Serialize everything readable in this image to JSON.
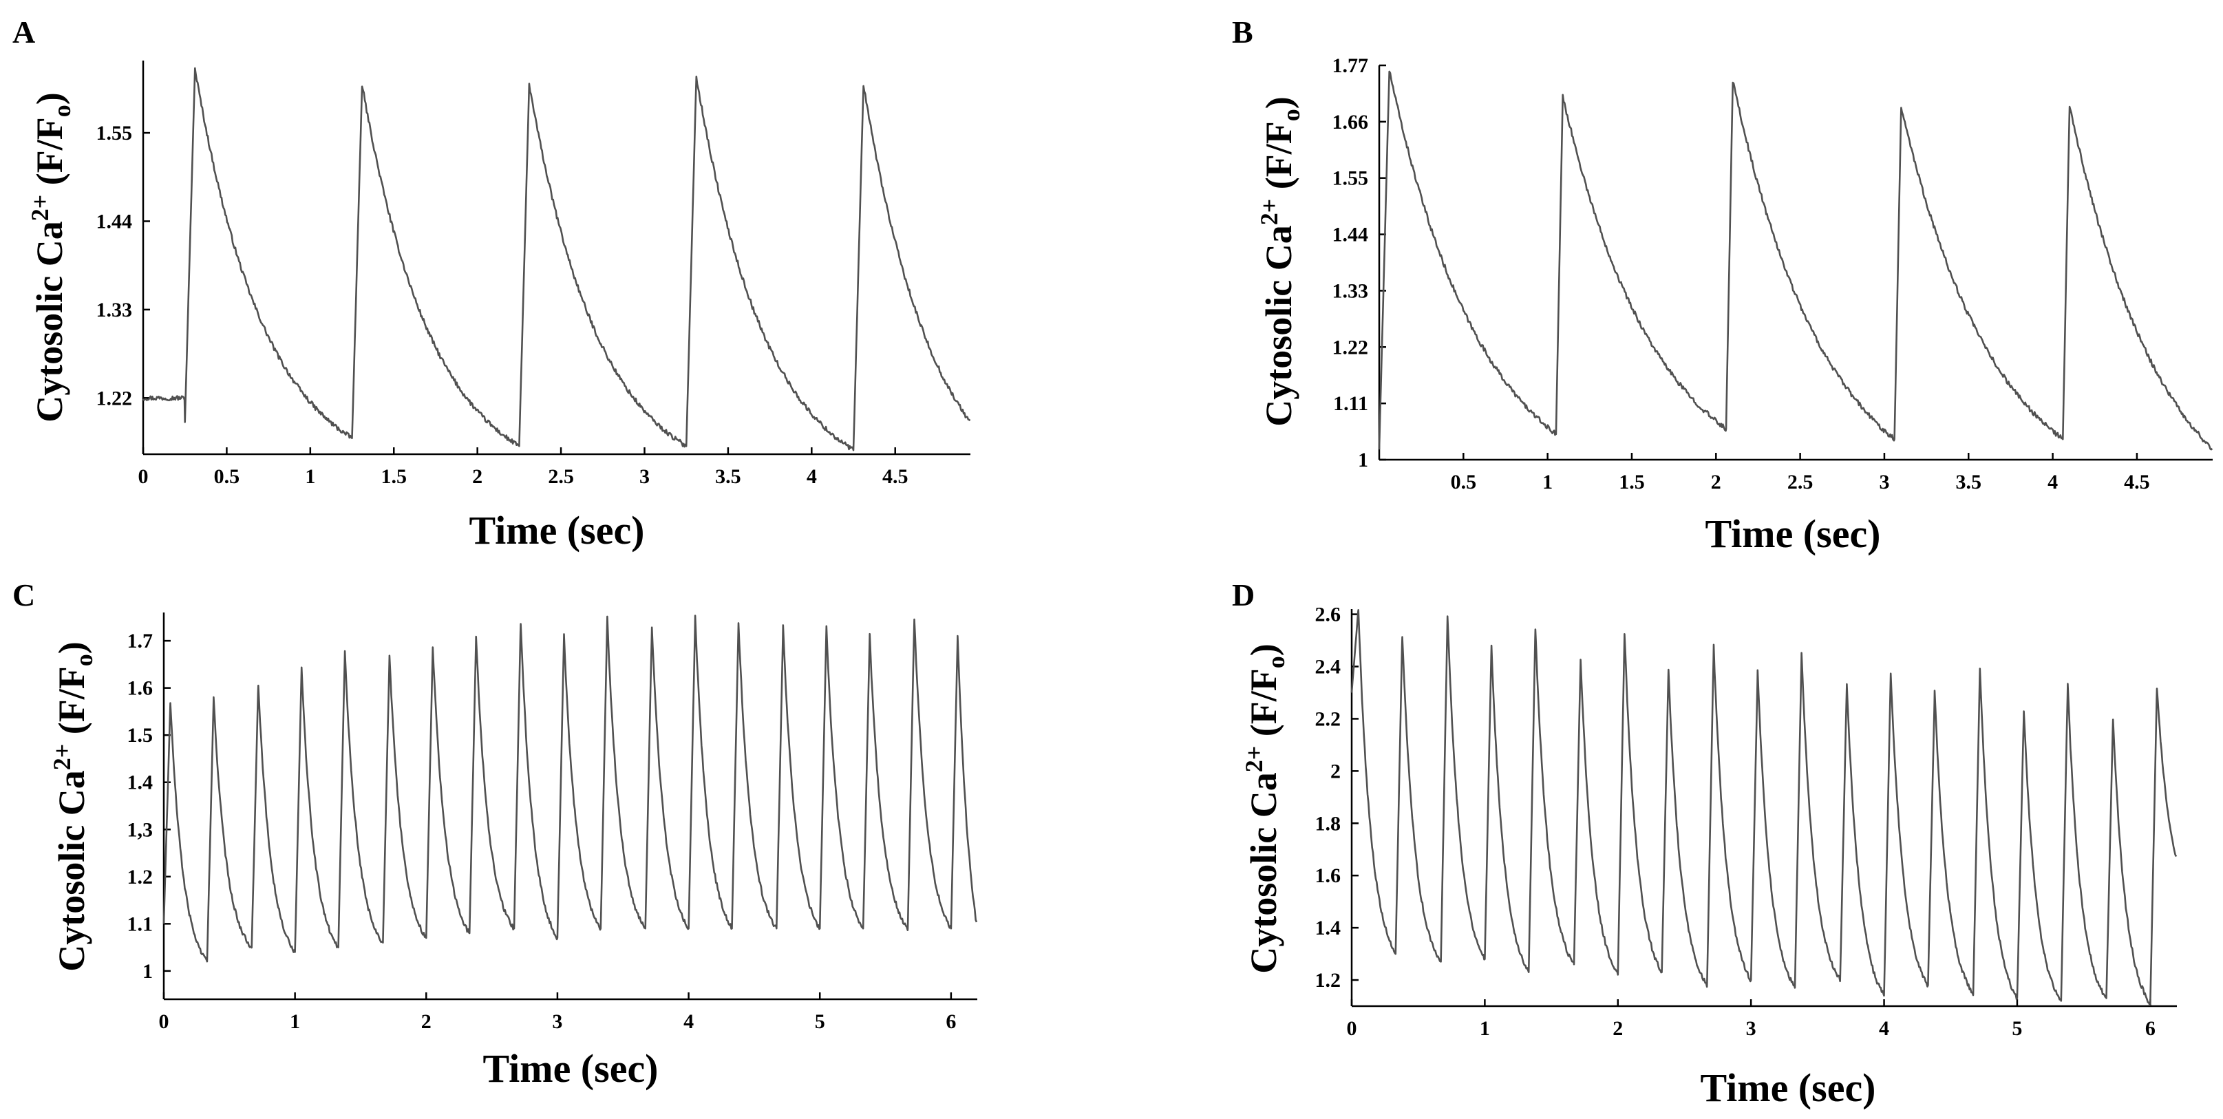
{
  "chart_data": [
    {
      "panel": "A",
      "type": "line",
      "xlabel": "Time (sec)",
      "ylabel_main": "Cytosolic Ca",
      "ylabel_sup": "2+",
      "ylabel_pre": "(F/F",
      "ylabel_sub": "o",
      "ylabel_post": ")",
      "xlim": [
        0,
        4.95
      ],
      "ylim": [
        1.15,
        1.64
      ],
      "xticks": [
        0,
        0.5,
        1,
        1.5,
        2,
        2.5,
        3,
        3.5,
        4,
        4.5
      ],
      "xtick_labels": [
        "0",
        "0.5",
        "1",
        "1.5",
        "2",
        "2.5",
        "3",
        "3.5",
        "4",
        "4.5"
      ],
      "yticks": [
        1.22,
        1.33,
        1.44,
        1.55
      ],
      "ytick_labels": [
        "1.22",
        "1.33",
        "1.44",
        "1.55"
      ],
      "series": [
        {
          "name": "Cytosolic Ca2+",
          "peaks": [
            {
              "t0": 0.25,
              "rise": 0.06,
              "base": 1.19,
              "peak": 1.63,
              "end": 1.17
            },
            {
              "t0": 1.25,
              "rise": 0.06,
              "base": 1.17,
              "peak": 1.61,
              "end": 1.16
            },
            {
              "t0": 2.25,
              "rise": 0.06,
              "base": 1.16,
              "peak": 1.61,
              "end": 1.16
            },
            {
              "t0": 3.25,
              "rise": 0.06,
              "base": 1.16,
              "peak": 1.62,
              "end": 1.155
            },
            {
              "t0": 4.25,
              "rise": 0.06,
              "base": 1.155,
              "peak": 1.61,
              "end": 1.19
            }
          ],
          "pre_value": 1.22,
          "tau": 0.42
        }
      ]
    },
    {
      "panel": "B",
      "type": "line",
      "xlabel": "Time (sec)",
      "ylabel_main": "Cytosolic Ca",
      "ylabel_sup": "2+",
      "ylabel_pre": "(F/F",
      "ylabel_sub": "o",
      "ylabel_post": ")",
      "xlim": [
        0,
        4.95
      ],
      "ylim": [
        1.0,
        1.77
      ],
      "xticks": [
        0.5,
        1,
        1.5,
        2,
        2.5,
        3,
        3.5,
        4,
        4.5
      ],
      "xtick_labels": [
        "0.5",
        "1",
        "1.5",
        "2",
        "2.5",
        "3",
        "3.5",
        "4",
        "4.5"
      ],
      "yticks": [
        1,
        1.11,
        1.22,
        1.33,
        1.44,
        1.55,
        1.66,
        1.77
      ],
      "ytick_labels": [
        "1",
        "1.11",
        "1.22",
        "1.33",
        "1.44",
        "1.55",
        "1.66",
        "1.77"
      ],
      "series": [
        {
          "name": "Cytosolic Ca2+",
          "peaks": [
            {
              "t0": 0.0,
              "rise": 0.06,
              "base": 1.02,
              "peak": 1.76,
              "end": 1.05
            },
            {
              "t0": 1.05,
              "rise": 0.04,
              "base": 1.05,
              "peak": 1.71,
              "end": 1.06
            },
            {
              "t0": 2.06,
              "rise": 0.04,
              "base": 1.06,
              "peak": 1.74,
              "end": 1.04
            },
            {
              "t0": 3.06,
              "rise": 0.04,
              "base": 1.04,
              "peak": 1.69,
              "end": 1.04
            },
            {
              "t0": 4.06,
              "rise": 0.04,
              "base": 1.04,
              "peak": 1.69,
              "end": 1.02
            }
          ],
          "pre_value": 1.02,
          "tau": 0.55
        }
      ]
    },
    {
      "panel": "C",
      "type": "line",
      "xlabel": "Time (sec)",
      "ylabel_main": "Cytosolic Ca",
      "ylabel_sup": "2+",
      "ylabel_pre": "(F/F",
      "ylabel_sub": "o",
      "ylabel_post": ")",
      "xlim": [
        0,
        6.2
      ],
      "ylim": [
        0.94,
        1.76
      ],
      "xticks": [
        0,
        1,
        2,
        3,
        4,
        5,
        6
      ],
      "xtick_labels": [
        "0",
        "1",
        "2",
        "3",
        "4",
        "5",
        "6"
      ],
      "yticks": [
        1,
        1.1,
        1.2,
        1.3,
        1.4,
        1.5,
        1.6,
        1.7
      ],
      "ytick_labels": [
        "1",
        "1.1",
        "1.2",
        "1,3",
        "1.4",
        "1.5",
        "1.6",
        "1.7"
      ],
      "series": [
        {
          "name": "Cytosolic Ca2+",
          "peaks": [
            {
              "t0": 0.0,
              "rise": 0.05,
              "base": 1.1,
              "peak": 1.57,
              "end": 1.02
            },
            {
              "t0": 0.33,
              "rise": 0.05,
              "base": 1.02,
              "peak": 1.58,
              "end": 1.05
            },
            {
              "t0": 0.67,
              "rise": 0.05,
              "base": 1.05,
              "peak": 1.61,
              "end": 1.04
            },
            {
              "t0": 1.0,
              "rise": 0.05,
              "base": 1.04,
              "peak": 1.64,
              "end": 1.05
            },
            {
              "t0": 1.33,
              "rise": 0.05,
              "base": 1.05,
              "peak": 1.68,
              "end": 1.06
            },
            {
              "t0": 1.67,
              "rise": 0.05,
              "base": 1.06,
              "peak": 1.67,
              "end": 1.07
            },
            {
              "t0": 2.0,
              "rise": 0.05,
              "base": 1.07,
              "peak": 1.69,
              "end": 1.08
            },
            {
              "t0": 2.33,
              "rise": 0.05,
              "base": 1.08,
              "peak": 1.71,
              "end": 1.09
            },
            {
              "t0": 2.67,
              "rise": 0.05,
              "base": 1.09,
              "peak": 1.74,
              "end": 1.07
            },
            {
              "t0": 3.0,
              "rise": 0.05,
              "base": 1.07,
              "peak": 1.71,
              "end": 1.09
            },
            {
              "t0": 3.33,
              "rise": 0.05,
              "base": 1.09,
              "peak": 1.75,
              "end": 1.09
            },
            {
              "t0": 3.67,
              "rise": 0.05,
              "base": 1.09,
              "peak": 1.73,
              "end": 1.09
            },
            {
              "t0": 4.0,
              "rise": 0.05,
              "base": 1.09,
              "peak": 1.75,
              "end": 1.09
            },
            {
              "t0": 4.33,
              "rise": 0.05,
              "base": 1.09,
              "peak": 1.74,
              "end": 1.09
            },
            {
              "t0": 4.67,
              "rise": 0.05,
              "base": 1.09,
              "peak": 1.73,
              "end": 1.09
            },
            {
              "t0": 5.0,
              "rise": 0.05,
              "base": 1.09,
              "peak": 1.73,
              "end": 1.09
            },
            {
              "t0": 5.33,
              "rise": 0.05,
              "base": 1.09,
              "peak": 1.71,
              "end": 1.09
            },
            {
              "t0": 5.67,
              "rise": 0.05,
              "base": 1.09,
              "peak": 1.75,
              "end": 1.09
            },
            {
              "t0": 6.0,
              "rise": 0.05,
              "base": 1.09,
              "peak": 1.71,
              "end": 1.09
            }
          ],
          "pre_value": 1.1,
          "tau": 0.1
        }
      ]
    },
    {
      "panel": "D",
      "type": "line",
      "xlabel": "Time (sec)",
      "ylabel_main": "Cytosolic Ca",
      "ylabel_sup": "2+",
      "ylabel_pre": "(F/F",
      "ylabel_sub": "o",
      "ylabel_post": ")",
      "xlim": [
        0,
        6.2
      ],
      "ylim": [
        1.1,
        2.62
      ],
      "xticks": [
        0,
        1,
        2,
        3,
        4,
        5,
        6
      ],
      "xtick_labels": [
        "0",
        "1",
        "2",
        "3",
        "4",
        "5",
        "6"
      ],
      "yticks": [
        1.2,
        1.4,
        1.6,
        1.8,
        2,
        2.2,
        2.4,
        2.6
      ],
      "ytick_labels": [
        "1.2",
        "1.4",
        "1.6",
        "1.8",
        "2",
        "2.2",
        "2.4",
        "2.6"
      ],
      "series": [
        {
          "name": "Cytosolic Ca2+",
          "peaks": [
            {
              "t0": 0.0,
              "rise": 0.05,
              "base": 2.3,
              "peak": 2.62,
              "end": 1.3
            },
            {
              "t0": 0.33,
              "rise": 0.05,
              "base": 1.3,
              "peak": 2.52,
              "end": 1.27
            },
            {
              "t0": 0.67,
              "rise": 0.05,
              "base": 1.27,
              "peak": 2.6,
              "end": 1.28
            },
            {
              "t0": 1.0,
              "rise": 0.05,
              "base": 1.28,
              "peak": 2.48,
              "end": 1.23
            },
            {
              "t0": 1.33,
              "rise": 0.05,
              "base": 1.23,
              "peak": 2.55,
              "end": 1.26
            },
            {
              "t0": 1.67,
              "rise": 0.05,
              "base": 1.26,
              "peak": 2.43,
              "end": 1.22
            },
            {
              "t0": 2.0,
              "rise": 0.05,
              "base": 1.22,
              "peak": 2.53,
              "end": 1.23
            },
            {
              "t0": 2.33,
              "rise": 0.05,
              "base": 1.23,
              "peak": 2.39,
              "end": 1.18
            },
            {
              "t0": 2.67,
              "rise": 0.05,
              "base": 1.18,
              "peak": 2.48,
              "end": 1.2
            },
            {
              "t0": 3.0,
              "rise": 0.05,
              "base": 1.2,
              "peak": 2.38,
              "end": 1.17
            },
            {
              "t0": 3.33,
              "rise": 0.05,
              "base": 1.17,
              "peak": 2.45,
              "end": 1.2
            },
            {
              "t0": 3.67,
              "rise": 0.05,
              "base": 1.2,
              "peak": 2.34,
              "end": 1.14
            },
            {
              "t0": 4.0,
              "rise": 0.05,
              "base": 1.14,
              "peak": 2.38,
              "end": 1.18
            },
            {
              "t0": 4.33,
              "rise": 0.05,
              "base": 1.18,
              "peak": 2.3,
              "end": 1.15
            },
            {
              "t0": 4.67,
              "rise": 0.05,
              "base": 1.15,
              "peak": 2.39,
              "end": 1.13
            },
            {
              "t0": 5.0,
              "rise": 0.05,
              "base": 1.13,
              "peak": 2.23,
              "end": 1.12
            },
            {
              "t0": 5.33,
              "rise": 0.05,
              "base": 1.12,
              "peak": 2.33,
              "end": 1.13
            },
            {
              "t0": 5.67,
              "rise": 0.05,
              "base": 1.13,
              "peak": 2.2,
              "end": 1.11
            },
            {
              "t0": 6.0,
              "rise": 0.05,
              "base": 1.11,
              "peak": 2.32,
              "end": 1.66
            }
          ],
          "pre_value": 2.3,
          "tau": 0.1
        }
      ]
    }
  ]
}
